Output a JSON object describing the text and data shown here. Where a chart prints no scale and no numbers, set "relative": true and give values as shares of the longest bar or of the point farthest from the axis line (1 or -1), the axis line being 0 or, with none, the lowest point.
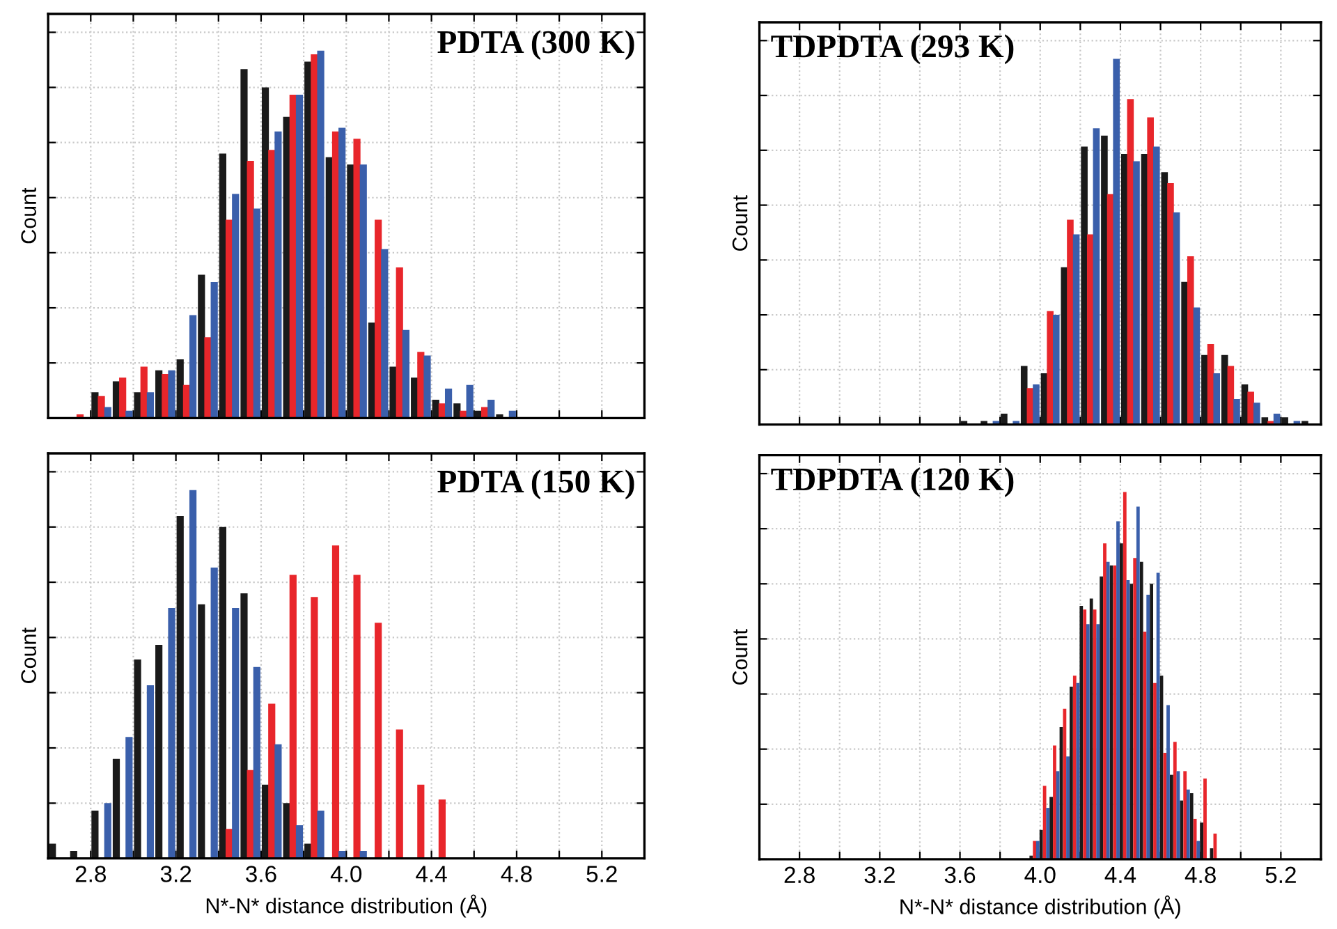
{
  "chart_data": [
    {
      "type": "bar",
      "title": "PDTA (300 K)",
      "ylabel": "Count",
      "relative": true,
      "grid": true,
      "tick_labels": false,
      "xlim": [
        2.6,
        5.4
      ],
      "xticks": [
        {
          "value": 2.8,
          "label": null
        },
        {
          "value": 3.0,
          "label": null
        },
        {
          "value": 3.2,
          "label": null
        },
        {
          "value": 3.4,
          "label": null
        },
        {
          "value": 3.6,
          "label": null
        },
        {
          "value": 3.8,
          "label": null
        },
        {
          "value": 4.0,
          "label": null
        },
        {
          "value": 4.2,
          "label": null
        },
        {
          "value": 4.4,
          "label": null
        },
        {
          "value": 4.6,
          "label": null
        },
        {
          "value": 4.8,
          "label": null
        },
        {
          "value": 5.0,
          "label": null
        },
        {
          "value": 5.2,
          "label": null
        }
      ],
      "series": [
        {
          "color": "#1a1a1a",
          "x": [
            2.82,
            2.92,
            3.02,
            3.12,
            3.22,
            3.32,
            3.42,
            3.52,
            3.62,
            3.72,
            3.82,
            3.92,
            4.02,
            4.12,
            4.22,
            4.32,
            4.42,
            4.52,
            4.62,
            4.72
          ],
          "values": [
            0.07,
            0.1,
            0.07,
            0.13,
            0.16,
            0.39,
            0.72,
            0.95,
            0.9,
            0.82,
            0.97,
            0.71,
            0.69,
            0.26,
            0.14,
            0.11,
            0.05,
            0.04,
            0.02,
            0.01
          ]
        },
        {
          "color": "#e8262b",
          "x": [
            2.75,
            2.85,
            2.95,
            3.05,
            3.15,
            3.25,
            3.35,
            3.45,
            3.55,
            3.65,
            3.75,
            3.85,
            3.95,
            4.05,
            4.15,
            4.25,
            4.35,
            4.45,
            4.55,
            4.65
          ],
          "values": [
            0.01,
            0.06,
            0.11,
            0.14,
            0.12,
            0.09,
            0.22,
            0.54,
            0.7,
            0.73,
            0.88,
            0.99,
            0.78,
            0.76,
            0.54,
            0.41,
            0.18,
            0.04,
            0.02,
            0.03
          ]
        },
        {
          "color": "#3a5fab",
          "x": [
            2.88,
            2.98,
            3.08,
            3.18,
            3.28,
            3.38,
            3.48,
            3.58,
            3.68,
            3.78,
            3.88,
            3.98,
            4.08,
            4.18,
            4.28,
            4.38,
            4.48,
            4.58,
            4.68,
            4.78
          ],
          "values": [
            0.03,
            0.02,
            0.07,
            0.13,
            0.28,
            0.37,
            0.61,
            0.57,
            0.78,
            0.88,
            1.0,
            0.79,
            0.69,
            0.46,
            0.24,
            0.17,
            0.08,
            0.09,
            0.05,
            0.02
          ]
        }
      ]
    },
    {
      "type": "bar",
      "title": "TDPDTA (293 K)",
      "ylabel": "Count",
      "relative": true,
      "grid": true,
      "tick_labels": false,
      "xlim": [
        2.6,
        5.4
      ],
      "xticks": [
        {
          "value": 2.8,
          "label": null
        },
        {
          "value": 3.0,
          "label": null
        },
        {
          "value": 3.2,
          "label": null
        },
        {
          "value": 3.4,
          "label": null
        },
        {
          "value": 3.6,
          "label": null
        },
        {
          "value": 3.8,
          "label": null
        },
        {
          "value": 4.0,
          "label": null
        },
        {
          "value": 4.2,
          "label": null
        },
        {
          "value": 4.4,
          "label": null
        },
        {
          "value": 4.6,
          "label": null
        },
        {
          "value": 4.8,
          "label": null
        },
        {
          "value": 5.0,
          "label": null
        },
        {
          "value": 5.2,
          "label": null
        }
      ],
      "series": [
        {
          "color": "#1a1a1a",
          "x": [
            3.62,
            3.72,
            3.82,
            3.92,
            4.02,
            4.12,
            4.22,
            4.32,
            4.42,
            4.52,
            4.62,
            4.72,
            4.82,
            4.92,
            5.02,
            5.12,
            5.22,
            5.32
          ],
          "values": [
            0.01,
            0.01,
            0.03,
            0.16,
            0.14,
            0.43,
            0.76,
            0.79,
            0.74,
            0.74,
            0.69,
            0.39,
            0.19,
            0.19,
            0.11,
            0.02,
            0.02,
            0.01
          ]
        },
        {
          "color": "#e8262b",
          "x": [
            3.95,
            4.05,
            4.15,
            4.25,
            4.35,
            4.45,
            4.55,
            4.65,
            4.75,
            4.85,
            4.95,
            5.05,
            5.15
          ],
          "values": [
            0.1,
            0.31,
            0.56,
            0.52,
            0.63,
            0.89,
            0.84,
            0.66,
            0.46,
            0.22,
            0.16,
            0.09,
            0.01
          ]
        },
        {
          "color": "#3a5fab",
          "x": [
            3.78,
            3.88,
            3.98,
            4.08,
            4.18,
            4.28,
            4.38,
            4.48,
            4.58,
            4.68,
            4.78,
            4.88,
            4.98,
            5.08,
            5.18,
            5.28
          ],
          "values": [
            0.01,
            0.01,
            0.11,
            0.3,
            0.52,
            0.81,
            1.0,
            0.72,
            0.76,
            0.58,
            0.32,
            0.14,
            0.07,
            0.06,
            0.03,
            0.01
          ]
        }
      ]
    },
    {
      "type": "bar",
      "title": "PDTA (150 K)",
      "ylabel": "Count",
      "xlabel": "N*-N* distance distribution (Å)",
      "relative": true,
      "grid": true,
      "tick_labels": "x",
      "xlim": [
        2.6,
        5.4
      ],
      "xticks": [
        2.8,
        {
          "value": 3.0,
          "label": null
        },
        3.2,
        {
          "value": 3.4,
          "label": null
        },
        3.6,
        {
          "value": 3.8,
          "label": null
        },
        {
          "value": 4,
          "label": "4.0"
        },
        {
          "value": 4.2,
          "label": null
        },
        4.4,
        {
          "value": 4.6,
          "label": null
        },
        4.8,
        {
          "value": 5.0,
          "label": null
        },
        5.2
      ],
      "series": [
        {
          "color": "#1a1a1a",
          "x": [
            2.62,
            2.72,
            2.82,
            2.92,
            3.02,
            3.12,
            3.22,
            3.32,
            3.42,
            3.52,
            3.62,
            3.72,
            3.82
          ],
          "values": [
            0.04,
            0.02,
            0.13,
            0.27,
            0.54,
            0.58,
            0.93,
            0.69,
            0.9,
            0.72,
            0.2,
            0.15,
            0.04
          ]
        },
        {
          "color": "#e8262b",
          "x": [
            3.45,
            3.55,
            3.65,
            3.75,
            3.85,
            3.95,
            4.05,
            4.15,
            4.25,
            4.35,
            4.45
          ],
          "values": [
            0.08,
            0.24,
            0.42,
            0.77,
            0.71,
            0.85,
            0.77,
            0.64,
            0.35,
            0.2,
            0.16
          ]
        },
        {
          "color": "#3a5fab",
          "x": [
            2.88,
            2.98,
            3.08,
            3.18,
            3.28,
            3.38,
            3.48,
            3.58,
            3.68,
            3.78,
            3.88,
            3.98,
            4.08
          ],
          "values": [
            0.15,
            0.33,
            0.47,
            0.68,
            1.0,
            0.79,
            0.68,
            0.52,
            0.31,
            0.09,
            0.13,
            0.02,
            0.02
          ]
        }
      ]
    },
    {
      "type": "bar",
      "title": "TDPDTA (120 K)",
      "ylabel": "Count",
      "xlabel": "N*-N* distance distribution (Å)",
      "relative": true,
      "grid": true,
      "tick_labels": "x",
      "xlim": [
        2.6,
        5.4
      ],
      "xticks": [
        2.8,
        {
          "value": 3.0,
          "label": null
        },
        3.2,
        {
          "value": 3.4,
          "label": null
        },
        3.6,
        {
          "value": 3.8,
          "label": null
        },
        {
          "value": 4,
          "label": "4.0"
        },
        {
          "value": 4.2,
          "label": null
        },
        4.4,
        {
          "value": 4.6,
          "label": null
        },
        4.8,
        {
          "value": 5.0,
          "label": null
        },
        5.2
      ],
      "series": [
        {
          "color": "#1a1a1a",
          "x": [
            3.955,
            4.005,
            4.055,
            4.105,
            4.155,
            4.205,
            4.255,
            4.305,
            4.355,
            4.405,
            4.455,
            4.505,
            4.555,
            4.605,
            4.655,
            4.705,
            4.755,
            4.805,
            4.855
          ],
          "values": [
            0.01,
            0.08,
            0.17,
            0.36,
            0.47,
            0.69,
            0.71,
            0.77,
            0.8,
            0.86,
            0.75,
            0.81,
            0.75,
            0.5,
            0.23,
            0.16,
            0.18,
            0.1,
            0.03
          ]
        },
        {
          "color": "#e8262b",
          "x": [
            3.972,
            4.022,
            4.072,
            4.122,
            4.172,
            4.222,
            4.272,
            4.322,
            4.372,
            4.422,
            4.472,
            4.522,
            4.572,
            4.622,
            4.672,
            4.722,
            4.772,
            4.822,
            4.872
          ],
          "values": [
            0.05,
            0.2,
            0.31,
            0.41,
            0.5,
            0.68,
            0.68,
            0.86,
            0.8,
            1.0,
            0.82,
            0.62,
            0.48,
            0.29,
            0.32,
            0.24,
            0.11,
            0.22,
            0.07
          ]
        },
        {
          "color": "#3a5fab",
          "x": [
            3.988,
            4.038,
            4.088,
            4.138,
            4.188,
            4.238,
            4.288,
            4.338,
            4.388,
            4.438,
            4.488,
            4.538,
            4.588,
            4.638,
            4.688,
            4.738,
            4.788
          ],
          "values": [
            0.05,
            0.14,
            0.24,
            0.28,
            0.48,
            0.64,
            0.64,
            0.81,
            0.92,
            0.76,
            0.96,
            0.72,
            0.78,
            0.42,
            0.24,
            0.19,
            0.05
          ]
        }
      ]
    }
  ]
}
